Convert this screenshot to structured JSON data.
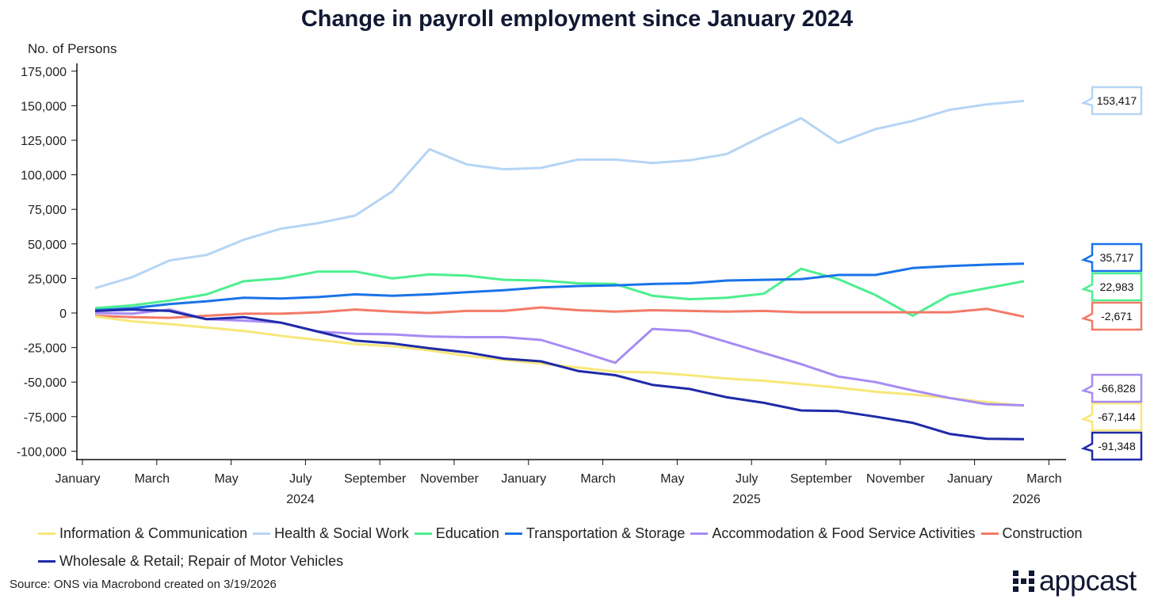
{
  "chart_data": {
    "type": "line",
    "title": "Change in payroll employment since January 2024",
    "ylabel": "No. of Persons",
    "xlabel": "",
    "ylim": [
      -100000,
      175000
    ],
    "yticks": [
      175000,
      150000,
      125000,
      100000,
      75000,
      50000,
      25000,
      0,
      -25000,
      -50000,
      -75000,
      -100000
    ],
    "ytick_labels": [
      "175,000",
      "150,000",
      "125,000",
      "100,000",
      "75,000",
      "50,000",
      "25,000",
      "0",
      "-25,000",
      "-50,000",
      "-75,000",
      "-100,000"
    ],
    "xtick_labels": [
      "January",
      "March",
      "May",
      "July",
      "September",
      "November",
      "January",
      "March",
      "May",
      "July",
      "September",
      "November",
      "January",
      "March"
    ],
    "year_labels": [
      {
        "label": "2024",
        "under": "July"
      },
      {
        "label": "2025",
        "under": "July"
      },
      {
        "label": "2026",
        "under": "March"
      }
    ],
    "x": [
      "2024-01",
      "2024-02",
      "2024-03",
      "2024-04",
      "2024-05",
      "2024-06",
      "2024-07",
      "2024-08",
      "2024-09",
      "2024-10",
      "2024-11",
      "2024-12",
      "2025-01",
      "2025-02",
      "2025-03",
      "2025-04",
      "2025-05",
      "2025-06",
      "2025-07",
      "2025-08",
      "2025-09",
      "2025-10",
      "2025-11",
      "2025-12",
      "2026-01",
      "2026-02"
    ],
    "grid": false,
    "legend_placement": "bottom",
    "series": [
      {
        "name": "Information & Communication",
        "color": "#f8e77a",
        "end_label": "-67,144",
        "values": [
          -2500,
          -6000,
          -8000,
          -10500,
          -13000,
          -16500,
          -19500,
          -22500,
          -24000,
          -27000,
          -31000,
          -34000,
          -36500,
          -39500,
          -42500,
          -43000,
          -45000,
          -47500,
          -49000,
          -51500,
          -54000,
          -57000,
          -59000,
          -61500,
          -64500,
          -67144
        ]
      },
      {
        "name": "Health & Social Work",
        "color": "#b5d5f5",
        "end_label": "153,417",
        "values": [
          18000,
          26000,
          38000,
          42000,
          53000,
          61000,
          65000,
          70500,
          88000,
          118500,
          107500,
          104000,
          105000,
          111000,
          111000,
          108500,
          110500,
          115000,
          128500,
          141000,
          123000,
          133000,
          139000,
          147000,
          151000,
          153417
        ]
      },
      {
        "name": "Education",
        "color": "#4cef8e",
        "end_label": "22,983",
        "values": [
          3500,
          5500,
          9000,
          13500,
          23000,
          25000,
          30000,
          30000,
          25000,
          28000,
          27000,
          24000,
          23500,
          21500,
          21000,
          12500,
          10000,
          11000,
          14000,
          32000,
          24500,
          13000,
          -2000,
          13000,
          18000,
          22983
        ]
      },
      {
        "name": "Transportation & Storage",
        "color": "#1a73e8",
        "end_label": "35,717",
        "values": [
          2000,
          3500,
          6500,
          8500,
          11000,
          10500,
          11500,
          13500,
          12500,
          13500,
          15000,
          16500,
          18500,
          19500,
          20000,
          21000,
          21500,
          23500,
          24000,
          24500,
          27500,
          27500,
          32500,
          34000,
          35000,
          35717
        ]
      },
      {
        "name": "Accommodation & Food Service Activities",
        "color": "#a78bf5",
        "end_label": "-66,828",
        "values": [
          0,
          -500,
          2500,
          -4500,
          -5500,
          -7000,
          -13500,
          -15000,
          -15500,
          -17000,
          -17500,
          -17500,
          -19500,
          -27500,
          -36000,
          -11500,
          -13000,
          -21000,
          -29000,
          -37000,
          -46000,
          -50000,
          -56000,
          -61500,
          -66000,
          -66828
        ]
      },
      {
        "name": "Construction",
        "color": "#f27a68",
        "end_label": "-2,671",
        "values": [
          -2000,
          -3000,
          -3500,
          -2000,
          -500,
          -500,
          500,
          2500,
          1000,
          0,
          1500,
          1500,
          4000,
          2000,
          1000,
          2000,
          1500,
          1000,
          1500,
          500,
          500,
          500,
          500,
          500,
          3000,
          -2671
        ]
      },
      {
        "name": "Wholesale & Retail; Repair of Motor Vehicles",
        "color": "#1f2aa8",
        "end_label": "-91,348",
        "values": [
          1500,
          2500,
          1500,
          -4500,
          -3000,
          -7000,
          -13500,
          -20000,
          -22000,
          -25500,
          -28500,
          -33000,
          -35000,
          -42000,
          -45000,
          -52000,
          -55000,
          -61000,
          -65000,
          -70500,
          -71000,
          -75000,
          -79500,
          -87500,
          -91000,
          -91348
        ]
      }
    ]
  },
  "source": "Source: ONS via Macrobond created on 3/19/2026",
  "logo": "appcast"
}
